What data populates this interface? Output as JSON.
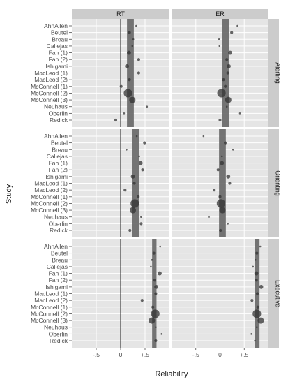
{
  "chart_data": {
    "type": "scatter",
    "xlabel": "Reliability",
    "ylabel": "Study",
    "xlim": [
      -1.0,
      1.0
    ],
    "x_ticks": [
      "-.5",
      "0",
      "+.5"
    ],
    "x_tick_values": [
      -0.5,
      0,
      0.5
    ],
    "columns": [
      "RT",
      "ER"
    ],
    "rows": [
      "Alerting",
      "Orienting",
      "Executive"
    ],
    "studies": [
      "AhnAllen",
      "Beutel",
      "Breau",
      "Callejas",
      "Fan (1)",
      "Fan (2)",
      "Ishigami",
      "MacLeod (1)",
      "MacLeod (2)",
      "McConnell (1)",
      "McConnell (2)",
      "McConnell (3)",
      "Neuhaus",
      "Oberlin",
      "Redick"
    ],
    "grid": true,
    "legend": "none",
    "colors": {
      "panel_bg": "#e5e5e5",
      "strip_bg": "#cccccc",
      "band": "#666666",
      "point": "#333333",
      "zero_line": "#1a1a1a"
    },
    "panels": [
      {
        "column": "RT",
        "row": "Alerting",
        "pooled": 0.2,
        "band_halfwidth": 0.07,
        "points": [
          {
            "study": "AhnAllen",
            "x": 0.32,
            "size": 1
          },
          {
            "study": "Beutel",
            "x": 0.18,
            "size": 2
          },
          {
            "study": "Breau",
            "x": 0.26,
            "size": 1
          },
          {
            "study": "Callejas",
            "x": 0.24,
            "size": 1
          },
          {
            "study": "Fan (1)",
            "x": 0.17,
            "size": 3
          },
          {
            "study": "Fan (2)",
            "x": 0.37,
            "size": 2
          },
          {
            "study": "Ishigami",
            "x": 0.13,
            "size": 3
          },
          {
            "study": "MacLeod (1)",
            "x": 0.37,
            "size": 2
          },
          {
            "study": "MacLeod (2)",
            "x": 0.18,
            "size": 2
          },
          {
            "study": "McConnell (1)",
            "x": 0.01,
            "size": 2
          },
          {
            "study": "McConnell (2)",
            "x": 0.15,
            "size": 7
          },
          {
            "study": "McConnell (3)",
            "x": 0.24,
            "size": 5
          },
          {
            "study": "Neuhaus",
            "x": 0.54,
            "size": 1
          },
          {
            "study": "Oberlin",
            "x": 0.07,
            "size": 1
          },
          {
            "study": "Redick",
            "x": -0.1,
            "size": 2
          }
        ]
      },
      {
        "column": "ER",
        "row": "Alerting",
        "pooled": 0.12,
        "band_halfwidth": 0.07,
        "points": [
          {
            "study": "AhnAllen",
            "x": 0.36,
            "size": 1
          },
          {
            "study": "Beutel",
            "x": 0.24,
            "size": 2
          },
          {
            "study": "Breau",
            "x": -0.02,
            "size": 1
          },
          {
            "study": "Callejas",
            "x": -0.01,
            "size": 1
          },
          {
            "study": "Fan (1)",
            "x": 0.21,
            "size": 3
          },
          {
            "study": "Fan (2)",
            "x": 0.14,
            "size": 2
          },
          {
            "study": "Ishigami",
            "x": 0.18,
            "size": 3
          },
          {
            "study": "MacLeod (1)",
            "x": 0.16,
            "size": 2
          },
          {
            "study": "MacLeod (2)",
            "x": 0.07,
            "size": 2
          },
          {
            "study": "McConnell (1)",
            "x": 0.11,
            "size": 2
          },
          {
            "study": "McConnell (2)",
            "x": 0.03,
            "size": 7
          },
          {
            "study": "McConnell (3)",
            "x": 0.17,
            "size": 5
          },
          {
            "study": "Neuhaus",
            "x": 0.14,
            "size": 1
          },
          {
            "study": "Oberlin",
            "x": 0.41,
            "size": 1
          },
          {
            "study": "Redick",
            "x": 0.0,
            "size": 2
          }
        ]
      },
      {
        "column": "RT",
        "row": "Orienting",
        "pooled": 0.31,
        "band_halfwidth": 0.07,
        "points": [
          {
            "study": "AhnAllen",
            "x": 0.33,
            "size": 1
          },
          {
            "study": "Beutel",
            "x": 0.49,
            "size": 2
          },
          {
            "study": "Breau",
            "x": 0.12,
            "size": 1
          },
          {
            "study": "Callejas",
            "x": 0.38,
            "size": 1
          },
          {
            "study": "Fan (1)",
            "x": 0.41,
            "size": 3
          },
          {
            "study": "Fan (2)",
            "x": 0.45,
            "size": 2
          },
          {
            "study": "Ishigami",
            "x": 0.25,
            "size": 3
          },
          {
            "study": "MacLeod (1)",
            "x": 0.28,
            "size": 2
          },
          {
            "study": "MacLeod (2)",
            "x": 0.09,
            "size": 2
          },
          {
            "study": "McConnell (1)",
            "x": 0.36,
            "size": 2
          },
          {
            "study": "McConnell (2)",
            "x": 0.29,
            "size": 7
          },
          {
            "study": "McConnell (3)",
            "x": 0.25,
            "size": 5
          },
          {
            "study": "Neuhaus",
            "x": 0.42,
            "size": 1
          },
          {
            "study": "Oberlin",
            "x": 0.42,
            "size": 2
          },
          {
            "study": "Redick",
            "x": 0.19,
            "size": 2
          }
        ]
      },
      {
        "column": "ER",
        "row": "Orienting",
        "pooled": 0.05,
        "band_halfwidth": 0.07,
        "points": [
          {
            "study": "AhnAllen",
            "x": -0.34,
            "size": 1
          },
          {
            "study": "Beutel",
            "x": 0.11,
            "size": 2
          },
          {
            "study": "Breau",
            "x": 0.27,
            "size": 1
          },
          {
            "study": "Callejas",
            "x": 0.04,
            "size": 1
          },
          {
            "study": "Fan (1)",
            "x": 0.04,
            "size": 3
          },
          {
            "study": "Fan (2)",
            "x": -0.04,
            "size": 2
          },
          {
            "study": "Ishigami",
            "x": 0.17,
            "size": 3
          },
          {
            "study": "MacLeod (1)",
            "x": 0.2,
            "size": 2
          },
          {
            "study": "MacLeod (2)",
            "x": -0.12,
            "size": 2
          },
          {
            "study": "McConnell (1)",
            "x": 0.0,
            "size": 2
          },
          {
            "study": "McConnell (2)",
            "x": 0.02,
            "size": 7
          },
          {
            "study": "McConnell (3)",
            "x": 0.05,
            "size": 5
          },
          {
            "study": "Neuhaus",
            "x": -0.23,
            "size": 1
          },
          {
            "study": "Oberlin",
            "x": 0.16,
            "size": 1
          },
          {
            "study": "Redick",
            "x": 0.01,
            "size": 2
          }
        ]
      },
      {
        "column": "RT",
        "row": "Executive",
        "pooled": 0.69,
        "band_halfwidth": 0.045,
        "points": [
          {
            "study": "AhnAllen",
            "x": 0.81,
            "size": 1
          },
          {
            "study": "Beutel",
            "x": 0.68,
            "size": 2
          },
          {
            "study": "Breau",
            "x": 0.64,
            "size": 1
          },
          {
            "study": "Callejas",
            "x": 0.62,
            "size": 1
          },
          {
            "study": "Fan (1)",
            "x": 0.8,
            "size": 3
          },
          {
            "study": "Fan (2)",
            "x": 0.7,
            "size": 2
          },
          {
            "study": "Ishigami",
            "x": 0.73,
            "size": 3
          },
          {
            "study": "MacLeod (1)",
            "x": 0.72,
            "size": 2
          },
          {
            "study": "MacLeod (2)",
            "x": 0.44,
            "size": 2
          },
          {
            "study": "McConnell (1)",
            "x": 0.66,
            "size": 2
          },
          {
            "study": "McConnell (2)",
            "x": 0.71,
            "size": 7
          },
          {
            "study": "McConnell (3)",
            "x": 0.64,
            "size": 5
          },
          {
            "study": "Neuhaus",
            "x": 0.72,
            "size": 1
          },
          {
            "study": "Oberlin",
            "x": 0.84,
            "size": 1
          },
          {
            "study": "Redick",
            "x": 0.72,
            "size": 2
          }
        ]
      },
      {
        "column": "ER",
        "row": "Executive",
        "pooled": 0.77,
        "band_halfwidth": 0.045,
        "points": [
          {
            "study": "AhnAllen",
            "x": 0.83,
            "size": 1
          },
          {
            "study": "Beutel",
            "x": 0.76,
            "size": 2
          },
          {
            "study": "Breau",
            "x": 0.73,
            "size": 1
          },
          {
            "study": "Callejas",
            "x": 0.68,
            "size": 1
          },
          {
            "study": "Fan (1)",
            "x": 0.75,
            "size": 3
          },
          {
            "study": "Fan (2)",
            "x": 0.75,
            "size": 2
          },
          {
            "study": "Ishigami",
            "x": 0.85,
            "size": 3
          },
          {
            "study": "MacLeod (1)",
            "x": 0.77,
            "size": 2
          },
          {
            "study": "MacLeod (2)",
            "x": 0.66,
            "size": 2
          },
          {
            "study": "McConnell (1)",
            "x": 0.78,
            "size": 2
          },
          {
            "study": "McConnell (2)",
            "x": 0.76,
            "size": 7
          },
          {
            "study": "McConnell (3)",
            "x": 0.84,
            "size": 5
          },
          {
            "study": "Neuhaus",
            "x": 0.76,
            "size": 1
          },
          {
            "study": "Oberlin",
            "x": 0.65,
            "size": 1
          },
          {
            "study": "Redick",
            "x": 0.72,
            "size": 1
          }
        ]
      }
    ]
  }
}
